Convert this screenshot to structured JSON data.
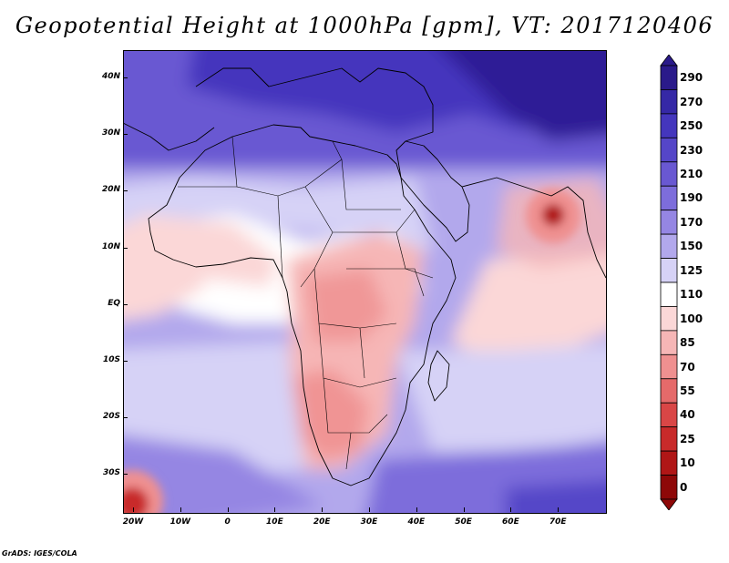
{
  "title": "Geopotential Height at 1000hPa [gpm], VT: 2017120406",
  "map": {
    "lat_labels": [
      "40N",
      "30N",
      "20N",
      "10N",
      "EQ",
      "10S",
      "20S",
      "30S"
    ],
    "lon_labels": [
      "20W",
      "10W",
      "0",
      "10E",
      "20E",
      "30E",
      "40E",
      "50E",
      "60E",
      "70E"
    ]
  },
  "colorbar": {
    "labels": [
      "290",
      "270",
      "250",
      "230",
      "210",
      "190",
      "170",
      "150",
      "125",
      "110",
      "100",
      "85",
      "70",
      "55",
      "40",
      "25",
      "10",
      "0"
    ],
    "colors": [
      "#2a1a8a",
      "#3528a6",
      "#4436bd",
      "#5546c8",
      "#6958d2",
      "#7d6ddb",
      "#9586e3",
      "#b2a8ec",
      "#d6d2f6",
      "#ffffff",
      "#fbd7d7",
      "#f6b6b6",
      "#ef9090",
      "#e56a6a",
      "#d94646",
      "#c82a2a",
      "#b01616",
      "#8e0808"
    ]
  },
  "credit": "GrADS: IGES/COLA",
  "colors": {
    "high_strong": "#3b2aa8",
    "high_mid": "#6b5bd0",
    "high_light": "#b8b0ee",
    "neutral": "#ffffff",
    "low_light": "#fbd2d2",
    "low_mid": "#f2a6a6",
    "low_strong": "#c42d2d"
  }
}
